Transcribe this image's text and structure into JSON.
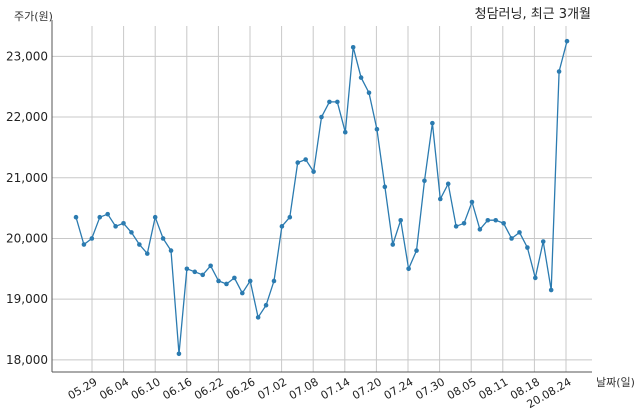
{
  "chart_data": {
    "type": "line",
    "title": "청담러닝, 최근 3개월",
    "xlabel": "날짜(일)",
    "ylabel": "주가(원)",
    "ylim": [
      17800,
      23500
    ],
    "yticks": [
      18000,
      19000,
      20000,
      21000,
      22000,
      23000
    ],
    "ytick_labels": [
      "18,000",
      "19,000",
      "20,000",
      "21,000",
      "22,000",
      "23,000"
    ],
    "xticks": [
      "05.29",
      "06.04",
      "06.10",
      "06.16",
      "06.22",
      "06.26",
      "07.02",
      "07.08",
      "07.14",
      "07.20",
      "07.24",
      "07.30",
      "08.05",
      "08.11",
      "08.18",
      "20.08.24"
    ],
    "grid": true,
    "colors": {
      "line": "#2b7bb0",
      "grid": "#c8c8c8",
      "axis": "#555555"
    },
    "series": [
      {
        "values": [
          20350,
          19900,
          20000,
          20350,
          20400,
          20200,
          20250,
          20100,
          19900,
          19750,
          20350,
          20000,
          19800,
          18100,
          19500,
          19450,
          19400,
          19550,
          19300,
          19250,
          19350,
          19100,
          19300,
          18700,
          18900,
          19300,
          20200,
          20350,
          21250,
          21300,
          21100,
          22000,
          22250,
          22250,
          21750,
          23150,
          22650,
          22400,
          21800,
          20850,
          19900,
          20300,
          19500,
          19800,
          20950,
          21900,
          20650,
          20900,
          20200,
          20250,
          20600,
          20150,
          20300,
          20300,
          20250,
          20000,
          20100,
          19850,
          19350,
          19950,
          19150,
          22750,
          23250
        ]
      }
    ]
  }
}
